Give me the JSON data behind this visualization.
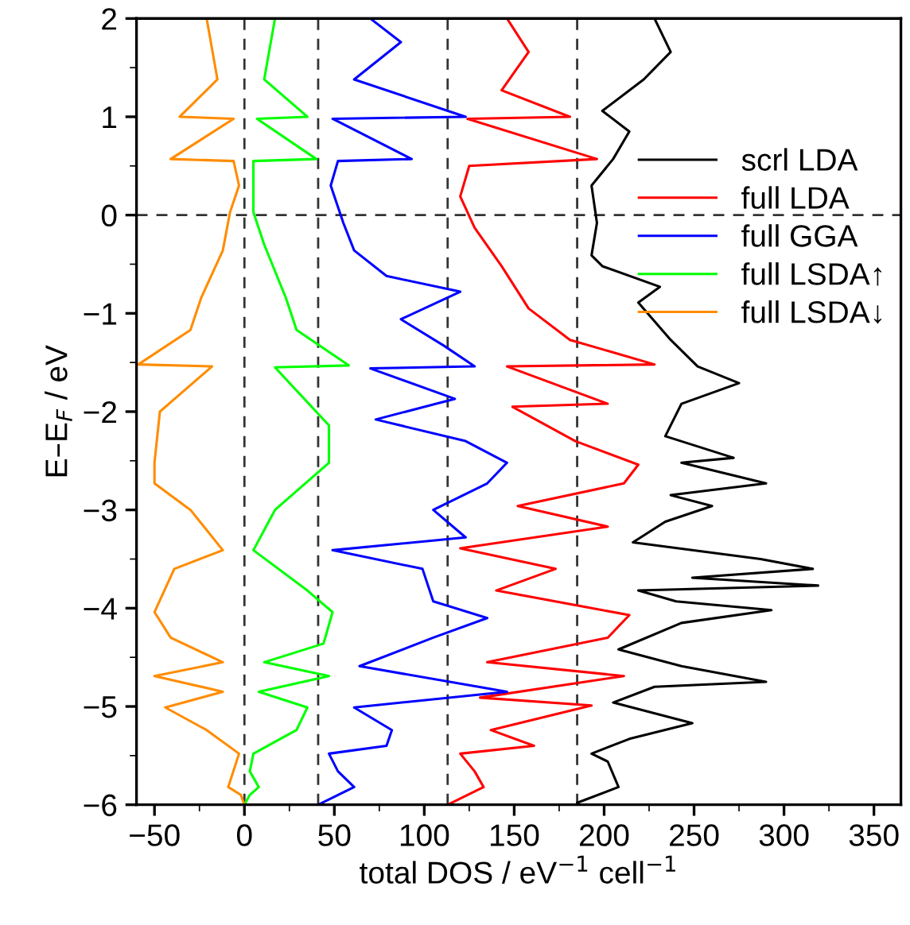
{
  "chart_data": {
    "type": "line",
    "xlabel": "total DOS / eV$^{−1}$ cell$^{−1}$",
    "ylabel": "E–E$_{F}$ / eV",
    "xlim": [
      -60,
      365
    ],
    "ylim": [
      -6,
      2
    ],
    "xticks": [
      {
        "value": -50,
        "label": "−50"
      },
      0,
      50,
      100,
      150,
      200,
      250,
      300,
      350
    ],
    "yticks": [
      {
        "value": -6,
        "label": "−6"
      },
      {
        "value": -5,
        "label": "−5"
      },
      {
        "value": -4,
        "label": "−4"
      },
      {
        "value": -3,
        "label": "−3"
      },
      {
        "value": -2,
        "label": "−2"
      },
      {
        "value": -1,
        "label": "−1"
      },
      0,
      1,
      2
    ],
    "grid": false,
    "legend": "right",
    "line_style": "solid",
    "marker": "none",
    "ref_lines": [
      {
        "axis": "x",
        "value": 0,
        "color": "#333333",
        "line_style": "dashed"
      },
      {
        "axis": "x",
        "value": 41,
        "color": "#333333",
        "line_style": "dashed"
      },
      {
        "axis": "x",
        "value": 113,
        "color": "#333333",
        "line_style": "dashed"
      },
      {
        "axis": "x",
        "value": 185,
        "color": "#333333",
        "line_style": "dashed"
      },
      {
        "axis": "y",
        "value": 0,
        "color": "#333333",
        "line_style": "dashed"
      }
    ],
    "series": [
      {
        "name": "scrl LDA",
        "color": "#000000",
        "x": [
          228,
          237,
          222,
          199,
          214,
          205,
          193,
          196,
          193,
          199,
          231,
          219,
          237,
          252,
          275,
          243,
          234,
          272,
          243,
          290,
          237,
          260,
          234,
          216,
          287,
          316,
          249,
          319,
          219,
          240,
          293,
          243,
          208,
          243,
          290,
          228,
          205,
          249,
          214,
          193,
          202,
          208,
          185,
          185
        ],
        "values": [
          2,
          1.66,
          1.38,
          1.06,
          0.85,
          0.57,
          0.3,
          -0.08,
          -0.41,
          -0.52,
          -0.73,
          -0.89,
          -1.27,
          -1.54,
          -1.71,
          -1.92,
          -2.25,
          -2.47,
          -2.52,
          -2.73,
          -2.85,
          -2.96,
          -3.12,
          -3.33,
          -3.5,
          -3.6,
          -3.69,
          -3.77,
          -3.82,
          -3.93,
          -4.02,
          -4.15,
          -4.42,
          -4.59,
          -4.75,
          -4.8,
          -4.96,
          -5.17,
          -5.33,
          -5.48,
          -5.56,
          -5.82,
          -5.98,
          -6
        ]
      },
      {
        "name": "full LDA",
        "color": "#ff0000",
        "x": [
          146,
          158,
          143,
          181,
          124,
          196,
          125,
          120,
          128,
          143,
          158,
          181,
          228,
          146,
          202,
          149,
          184,
          219,
          211,
          152,
          202,
          120,
          173,
          140,
          214,
          202,
          135,
          211,
          131,
          193,
          137,
          161,
          120,
          128,
          133,
          113
        ],
        "values": [
          2,
          1.66,
          1.27,
          1.0,
          0.98,
          0.57,
          0.5,
          0.19,
          -0.13,
          -0.52,
          -0.95,
          -1.27,
          -1.52,
          -1.54,
          -1.92,
          -1.95,
          -2.3,
          -2.54,
          -2.73,
          -2.96,
          -3.17,
          -3.39,
          -3.6,
          -3.82,
          -4.07,
          -4.3,
          -4.55,
          -4.69,
          -4.91,
          -4.99,
          -5.24,
          -5.4,
          -5.48,
          -5.66,
          -5.82,
          -6
        ]
      },
      {
        "name": "full GGA",
        "color": "#0000ff",
        "x": [
          70,
          87,
          61,
          123,
          49,
          93,
          52,
          48,
          55,
          61,
          79,
          120,
          87,
          111,
          128,
          70,
          117,
          73,
          123,
          146,
          135,
          105,
          123,
          49,
          99,
          105,
          135,
          105,
          64,
          146,
          61,
          82,
          79,
          47,
          52,
          61,
          41
        ],
        "values": [
          2,
          1.76,
          1.38,
          1.0,
          0.98,
          0.57,
          0.55,
          0.3,
          -0.08,
          -0.36,
          -0.62,
          -0.78,
          -1.06,
          -1.33,
          -1.54,
          -1.56,
          -1.87,
          -2.08,
          -2.3,
          -2.52,
          -2.73,
          -3.0,
          -3.28,
          -3.41,
          -3.6,
          -3.93,
          -4.1,
          -4.3,
          -4.59,
          -4.85,
          -5.01,
          -5.24,
          -5.4,
          -5.48,
          -5.66,
          -5.82,
          -6
        ]
      },
      {
        "name": "full LSDA↑",
        "color": "#00ff00",
        "x": [
          17,
          11,
          35,
          7,
          40,
          5,
          5,
          11,
          23,
          29,
          58,
          17,
          47,
          47,
          17,
          5,
          35,
          49,
          44,
          11,
          47,
          8,
          35,
          29,
          5,
          3,
          8,
          3,
          0
        ],
        "values": [
          2,
          1.38,
          1.0,
          0.98,
          0.57,
          0.55,
          0.03,
          -0.3,
          -0.84,
          -1.17,
          -1.53,
          -1.55,
          -2.14,
          -2.52,
          -3.0,
          -3.41,
          -3.82,
          -4.04,
          -4.36,
          -4.55,
          -4.69,
          -4.85,
          -5.01,
          -5.24,
          -5.48,
          -5.66,
          -5.82,
          -5.9,
          -6
        ]
      },
      {
        "name": "full LSDA↓",
        "color": "#ff8c00",
        "x": [
          -21,
          -15,
          -36,
          -6,
          -41,
          -6,
          -3,
          -8,
          -12,
          -24,
          -30,
          -59,
          -18,
          -47,
          -50,
          -50,
          -30,
          -12,
          -39,
          -50,
          -41,
          -12,
          -50,
          -12,
          -44,
          -21,
          -3,
          -9,
          -2,
          0
        ],
        "values": [
          2,
          1.38,
          1.0,
          0.98,
          0.57,
          0.55,
          0.3,
          0.03,
          -0.36,
          -0.84,
          -1.17,
          -1.52,
          -1.54,
          -2.0,
          -2.52,
          -2.73,
          -3.0,
          -3.41,
          -3.6,
          -4.04,
          -4.3,
          -4.55,
          -4.69,
          -4.85,
          -5.01,
          -5.24,
          -5.48,
          -5.82,
          -5.9,
          -6
        ]
      }
    ]
  }
}
